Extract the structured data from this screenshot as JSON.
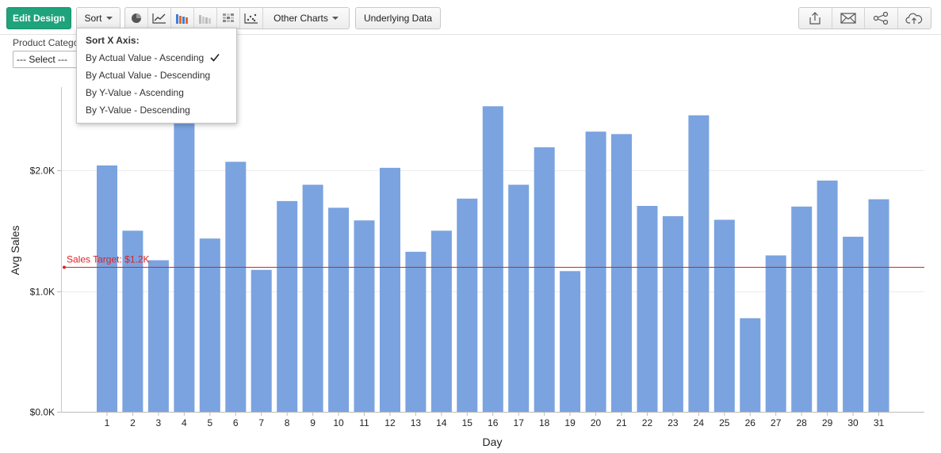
{
  "toolbar": {
    "edit_design": "Edit Design",
    "sort": "Sort",
    "other_charts": "Other Charts",
    "underlying_data": "Underlying Data",
    "chart_type_icons": [
      "pie-chart-icon",
      "line-chart-icon",
      "bar-chart-icon",
      "stacked-bar-icon",
      "heatmap-icon",
      "scatter-icon"
    ],
    "action_icons": [
      "export-icon",
      "email-icon",
      "share-icon",
      "publish-cloud-icon"
    ]
  },
  "filter": {
    "label": "Product Catego",
    "selected": "--- Select ---"
  },
  "sort_menu": {
    "title": "Sort X Axis:",
    "items": [
      {
        "label": "By Actual Value - Ascending",
        "checked": true
      },
      {
        "label": "By Actual Value - Descending",
        "checked": false
      },
      {
        "label": "By Y-Value - Ascending",
        "checked": false
      },
      {
        "label": "By Y-Value - Descending",
        "checked": false
      }
    ]
  },
  "colors": {
    "bar": "#7aa3e0",
    "target_line": "#e02020",
    "primary_button": "#1fa37c"
  },
  "chart_data": {
    "type": "bar",
    "xlabel": "Day",
    "ylabel": "Avg Sales",
    "categories": [
      "1",
      "2",
      "3",
      "4",
      "5",
      "6",
      "7",
      "8",
      "9",
      "10",
      "11",
      "12",
      "13",
      "14",
      "15",
      "16",
      "17",
      "18",
      "19",
      "20",
      "21",
      "22",
      "23",
      "24",
      "25",
      "26",
      "27",
      "28",
      "29",
      "30",
      "31"
    ],
    "values": [
      2040,
      1500,
      1255,
      2450,
      1435,
      2070,
      1175,
      1745,
      1880,
      1690,
      1585,
      2020,
      1325,
      1500,
      1765,
      2530,
      1880,
      2190,
      1165,
      2320,
      2300,
      1705,
      1620,
      2455,
      1590,
      775,
      1295,
      1700,
      1915,
      1450,
      1760
    ],
    "ylim": [
      0,
      2500
    ],
    "yticks": [
      0,
      1000,
      2000
    ],
    "ytick_labels": [
      "$0.0K",
      "$1.0K",
      "$2.0K"
    ],
    "grid": true,
    "reference_line": {
      "label": "Sales Target: $1.2K",
      "value": 1200
    }
  }
}
